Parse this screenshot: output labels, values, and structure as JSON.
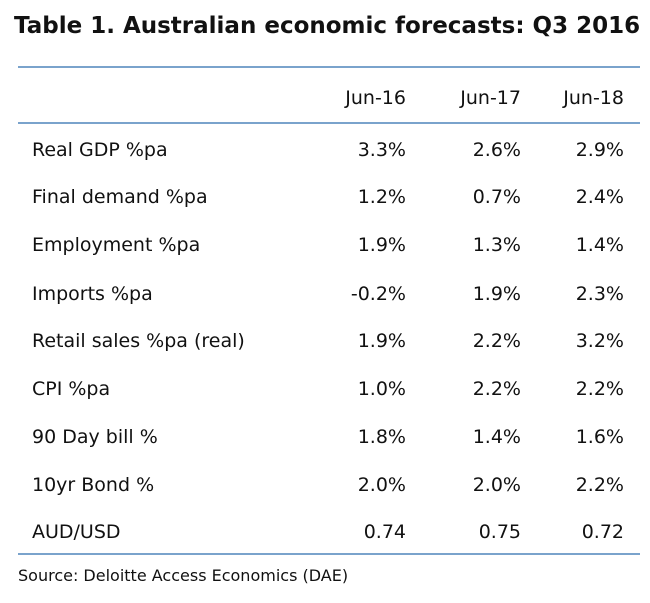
{
  "title": "Table 1. Australian economic forecasts: Q3 2016",
  "columns": [
    "Jun-16",
    "Jun-17",
    "Jun-18"
  ],
  "rows": [
    {
      "label": "Real GDP %pa",
      "values": [
        "3.3%",
        "2.6%",
        "2.9%"
      ]
    },
    {
      "label": "Final demand %pa",
      "values": [
        "1.2%",
        "0.7%",
        "2.4%"
      ]
    },
    {
      "label": "Employment %pa",
      "values": [
        "1.9%",
        "1.3%",
        "1.4%"
      ]
    },
    {
      "label": "Imports %pa",
      "values": [
        "-0.2%",
        "1.9%",
        "2.3%"
      ]
    },
    {
      "label": "Retail sales %pa (real)",
      "values": [
        "1.9%",
        "2.2%",
        "3.2%"
      ]
    },
    {
      "label": "CPI %pa",
      "values": [
        "1.0%",
        "2.2%",
        "2.2%"
      ]
    },
    {
      "label": "90 Day bill %",
      "values": [
        "1.8%",
        "1.4%",
        "1.6%"
      ]
    },
    {
      "label": "10yr Bond %",
      "values": [
        "2.0%",
        "2.0%",
        "2.2%"
      ]
    },
    {
      "label": "AUD/USD",
      "values": [
        "0.74",
        "0.75",
        "0.72"
      ]
    }
  ],
  "source": "Source: Deloitte Access Economics (DAE)",
  "colors": {
    "rule": "#7aa3cc",
    "text": "#111111"
  }
}
